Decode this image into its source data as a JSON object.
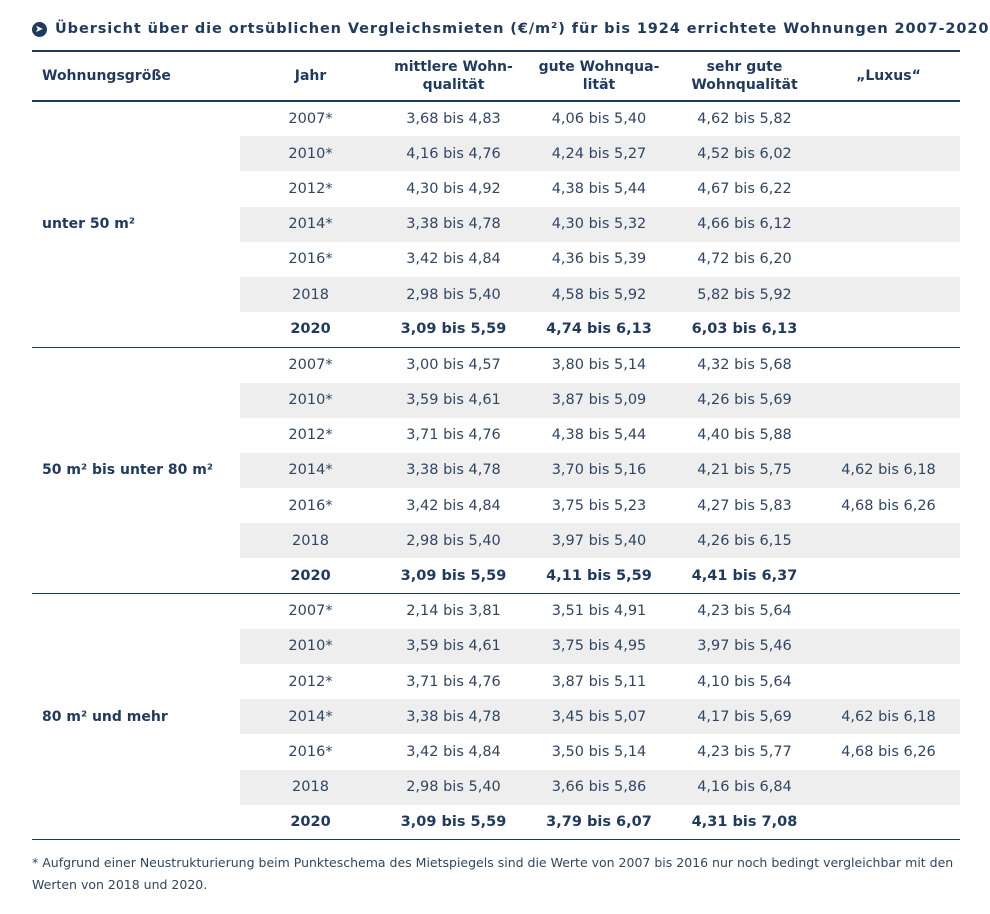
{
  "title": "Übersicht über die ortsüblichen Vergleichsmieten (€/m²) für bis 1924 errichtete Wohnungen 2007-2020",
  "title_icon": "circle-arrow-right-icon",
  "columns": [
    "Wohnungsgröße",
    "Jahr",
    "mittlere Wohn-\nqualität",
    "gute Wohnqua-\nlität",
    "sehr gute\nWohnqualität",
    "„Luxus“"
  ],
  "groups": [
    {
      "label": "unter 50 m²",
      "rows": [
        {
          "year": "2007*",
          "mittel": "3,68 bis 4,83",
          "gut": "4,06 bis 5,40",
          "sehr_gut": "4,62 bis 5,82",
          "luxus": ""
        },
        {
          "year": "2010*",
          "mittel": "4,16 bis 4,76",
          "gut": "4,24 bis 5,27",
          "sehr_gut": "4,52 bis 6,02",
          "luxus": ""
        },
        {
          "year": "2012*",
          "mittel": "4,30 bis 4,92",
          "gut": "4,38 bis 5,44",
          "sehr_gut": "4,67 bis 6,22",
          "luxus": ""
        },
        {
          "year": "2014*",
          "mittel": "3,38 bis 4,78",
          "gut": "4,30 bis 5,32",
          "sehr_gut": "4,66 bis 6,12",
          "luxus": ""
        },
        {
          "year": "2016*",
          "mittel": "3,42 bis 4,84",
          "gut": "4,36 bis 5,39",
          "sehr_gut": "4,72 bis 6,20",
          "luxus": ""
        },
        {
          "year": "2018",
          "mittel": "2,98 bis 5,40",
          "gut": "4,58 bis 5,92",
          "sehr_gut": "5,82 bis 5,92",
          "luxus": ""
        },
        {
          "year": "2020",
          "mittel": "3,09 bis 5,59",
          "gut": "4,74 bis 6,13",
          "sehr_gut": "6,03 bis 6,13",
          "luxus": ""
        }
      ]
    },
    {
      "label": "50 m² bis unter 80 m²",
      "rows": [
        {
          "year": "2007*",
          "mittel": "3,00 bis 4,57",
          "gut": "3,80 bis 5,14",
          "sehr_gut": "4,32 bis 5,68",
          "luxus": ""
        },
        {
          "year": "2010*",
          "mittel": "3,59 bis 4,61",
          "gut": "3,87 bis 5,09",
          "sehr_gut": "4,26 bis 5,69",
          "luxus": ""
        },
        {
          "year": "2012*",
          "mittel": "3,71 bis 4,76",
          "gut": "4,38 bis 5,44",
          "sehr_gut": "4,40 bis 5,88",
          "luxus": ""
        },
        {
          "year": "2014*",
          "mittel": "3,38 bis 4,78",
          "gut": "3,70 bis 5,16",
          "sehr_gut": "4,21 bis 5,75",
          "luxus": "4,62 bis 6,18"
        },
        {
          "year": "2016*",
          "mittel": "3,42 bis 4,84",
          "gut": "3,75 bis 5,23",
          "sehr_gut": "4,27 bis 5,83",
          "luxus": "4,68 bis 6,26"
        },
        {
          "year": "2018",
          "mittel": "2,98 bis 5,40",
          "gut": "3,97 bis 5,40",
          "sehr_gut": "4,26 bis 6,15",
          "luxus": ""
        },
        {
          "year": "2020",
          "mittel": "3,09 bis 5,59",
          "gut": "4,11 bis 5,59",
          "sehr_gut": "4,41 bis 6,37",
          "luxus": ""
        }
      ]
    },
    {
      "label": "80 m² und mehr",
      "rows": [
        {
          "year": "2007*",
          "mittel": "2,14 bis 3,81",
          "gut": "3,51 bis 4,91",
          "sehr_gut": "4,23 bis 5,64",
          "luxus": ""
        },
        {
          "year": "2010*",
          "mittel": "3,59 bis 4,61",
          "gut": "3,75 bis 4,95",
          "sehr_gut": "3,97 bis 5,46",
          "luxus": ""
        },
        {
          "year": "2012*",
          "mittel": "3,71 bis 4,76",
          "gut": "3,87 bis 5,11",
          "sehr_gut": "4,10 bis 5,64",
          "luxus": ""
        },
        {
          "year": "2014*",
          "mittel": "3,38 bis 4,78",
          "gut": "3,45 bis 5,07",
          "sehr_gut": "4,17 bis 5,69",
          "luxus": "4,62 bis 6,18"
        },
        {
          "year": "2016*",
          "mittel": "3,42 bis 4,84",
          "gut": "3,50 bis 5,14",
          "sehr_gut": "4,23 bis 5,77",
          "luxus": "4,68 bis 6,26"
        },
        {
          "year": "2018",
          "mittel": "2,98 bis 5,40",
          "gut": "3,66 bis 5,86",
          "sehr_gut": "4,16 bis 6,84",
          "luxus": ""
        },
        {
          "year": "2020",
          "mittel": "3,09 bis 5,59",
          "gut": "3,79 bis 6,07",
          "sehr_gut": "4,31 bis 7,08",
          "luxus": ""
        }
      ]
    }
  ],
  "footnote": "* Aufgrund einer Neustrukturierung beim Punkteschema des Mietspiegels sind die Werte von 2007 bis 2016 nur noch bedingt vergleichbar mit den Werten von 2018 und 2020."
}
